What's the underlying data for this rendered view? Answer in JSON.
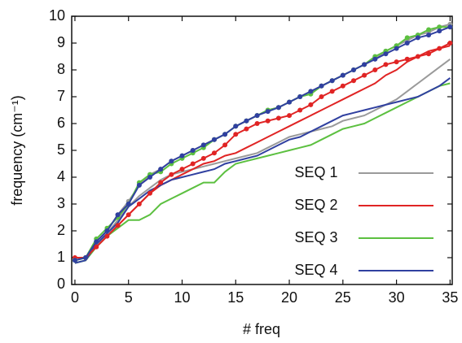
{
  "chart_data": {
    "type": "line",
    "x_label": "# freq",
    "y_label": "frequency (cm⁻¹)",
    "x": [
      0,
      1,
      2,
      3,
      4,
      5,
      6,
      7,
      8,
      9,
      10,
      11,
      12,
      13,
      14,
      15,
      16,
      17,
      18,
      19,
      20,
      21,
      22,
      23,
      24,
      25,
      26,
      27,
      28,
      29,
      30,
      31,
      32,
      33,
      34,
      35
    ],
    "xlim": [
      -0.3,
      35.2
    ],
    "ylim": [
      0,
      10
    ],
    "xticks": [
      0,
      5,
      10,
      15,
      20,
      25,
      30,
      35
    ],
    "yticks": [
      0,
      1,
      2,
      3,
      4,
      5,
      6,
      7,
      8,
      9,
      10
    ],
    "legend": "lower right",
    "series": [
      {
        "name": "SEQ 1",
        "color": "#9a9a9a",
        "values": [
          0.9,
          1.0,
          1.5,
          1.9,
          2.4,
          2.9,
          3.3,
          3.6,
          3.9,
          4.1,
          4.2,
          4.3,
          4.4,
          4.5,
          4.6,
          4.7,
          4.8,
          4.9,
          5.1,
          5.3,
          5.5,
          5.6,
          5.7,
          5.8,
          5.9,
          6.1,
          6.2,
          6.3,
          6.5,
          6.7,
          6.9,
          7.2,
          7.5,
          7.8,
          8.1,
          8.4
        ],
        "marked_values": [
          0.9,
          1.0,
          1.6,
          2.0,
          2.6,
          3.1,
          3.7,
          4.1,
          4.3,
          4.6,
          4.8,
          5.0,
          5.2,
          5.4,
          5.6,
          5.9,
          6.1,
          6.3,
          6.5,
          6.6,
          6.8,
          7.0,
          7.2,
          7.4,
          7.6,
          7.8,
          8.0,
          8.2,
          8.4,
          8.7,
          8.9,
          9.1,
          9.3,
          9.4,
          9.6,
          9.7
        ]
      },
      {
        "name": "SEQ 2",
        "color": "#e02424",
        "values": [
          1.0,
          1.0,
          1.4,
          1.8,
          2.2,
          2.6,
          3.0,
          3.4,
          3.7,
          3.9,
          4.1,
          4.3,
          4.5,
          4.6,
          4.8,
          4.9,
          5.1,
          5.3,
          5.5,
          5.7,
          5.9,
          6.1,
          6.3,
          6.5,
          6.7,
          6.9,
          7.1,
          7.3,
          7.5,
          7.8,
          8.0,
          8.3,
          8.5,
          8.7,
          8.8,
          8.9
        ],
        "marked_values": [
          1.0,
          1.0,
          1.4,
          1.8,
          2.2,
          2.6,
          3.0,
          3.4,
          3.8,
          4.1,
          4.3,
          4.5,
          4.7,
          4.9,
          5.2,
          5.6,
          5.8,
          6.0,
          6.1,
          6.2,
          6.3,
          6.5,
          6.7,
          7.0,
          7.2,
          7.4,
          7.6,
          7.8,
          8.0,
          8.2,
          8.3,
          8.4,
          8.5,
          8.6,
          8.8,
          9.0
        ]
      },
      {
        "name": "SEQ 3",
        "color": "#5cc040",
        "values": [
          0.8,
          0.9,
          1.4,
          1.8,
          2.1,
          2.4,
          2.4,
          2.6,
          3.0,
          3.2,
          3.4,
          3.6,
          3.8,
          3.8,
          4.2,
          4.5,
          4.6,
          4.7,
          4.8,
          4.9,
          5.0,
          5.1,
          5.2,
          5.4,
          5.6,
          5.8,
          5.9,
          6.0,
          6.2,
          6.4,
          6.6,
          6.8,
          7.0,
          7.2,
          7.4,
          7.5
        ],
        "marked_values": [
          0.9,
          1.0,
          1.7,
          2.1,
          2.5,
          3.0,
          3.8,
          4.1,
          4.2,
          4.5,
          4.7,
          4.9,
          5.1,
          5.4,
          5.6,
          5.9,
          6.1,
          6.3,
          6.5,
          6.6,
          6.8,
          7.0,
          7.1,
          7.4,
          7.6,
          7.8,
          8.0,
          8.2,
          8.5,
          8.7,
          8.9,
          9.2,
          9.3,
          9.5,
          9.6,
          9.6
        ]
      },
      {
        "name": "SEQ 4",
        "color": "#3040a0",
        "values": [
          0.8,
          0.9,
          1.5,
          1.9,
          2.3,
          2.9,
          3.2,
          3.5,
          3.7,
          3.9,
          4.0,
          4.1,
          4.2,
          4.3,
          4.5,
          4.6,
          4.7,
          4.8,
          5.0,
          5.2,
          5.4,
          5.5,
          5.7,
          5.9,
          6.1,
          6.3,
          6.4,
          6.5,
          6.6,
          6.7,
          6.8,
          6.9,
          7.0,
          7.2,
          7.4,
          7.7
        ],
        "marked_values": [
          0.9,
          1.0,
          1.6,
          2.0,
          2.6,
          3.0,
          3.7,
          4.0,
          4.3,
          4.6,
          4.8,
          5.0,
          5.2,
          5.4,
          5.6,
          5.9,
          6.1,
          6.3,
          6.45,
          6.6,
          6.8,
          7.0,
          7.2,
          7.4,
          7.6,
          7.8,
          8.0,
          8.2,
          8.4,
          8.6,
          8.8,
          9.0,
          9.2,
          9.3,
          9.45,
          9.6
        ]
      }
    ]
  }
}
